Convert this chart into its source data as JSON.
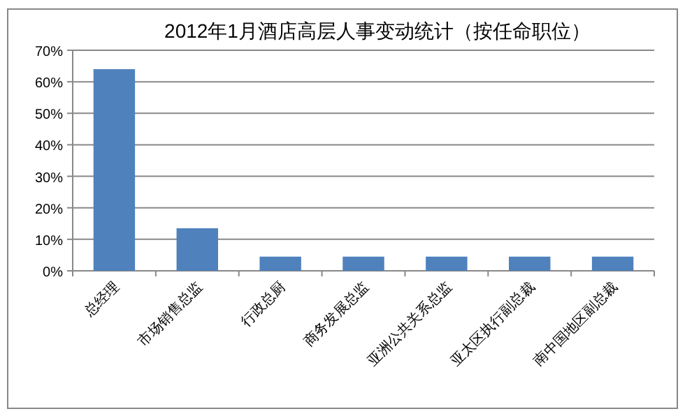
{
  "chart_data": {
    "type": "bar",
    "title": "2012年1月酒店高层人事变动统计（按任命职位）",
    "categories": [
      "总经理",
      "市场销售总监",
      "行政总厨",
      "商务发展总监",
      "亚洲公共关系总监",
      "亚太区执行副总裁",
      "南中国地区副总裁"
    ],
    "values": [
      64,
      13.5,
      4.5,
      4.5,
      4.5,
      4.5,
      4.5
    ],
    "color": "#4f81bd",
    "ylim": [
      0,
      70
    ],
    "yticks": [
      {
        "value": 0,
        "label": "0%"
      },
      {
        "value": 10,
        "label": "10%"
      },
      {
        "value": 20,
        "label": "20%"
      },
      {
        "value": 30,
        "label": "30%"
      },
      {
        "value": 40,
        "label": "40%"
      },
      {
        "value": 50,
        "label": "50%"
      },
      {
        "value": 60,
        "label": "60%"
      },
      {
        "value": 70,
        "label": "70%"
      }
    ],
    "grid": "y"
  }
}
